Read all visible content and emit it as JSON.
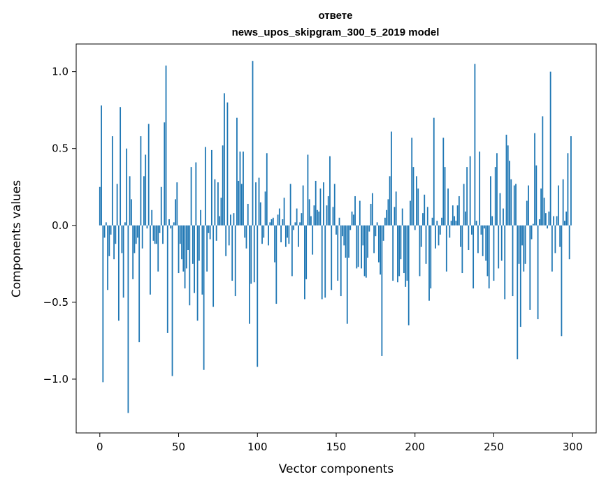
{
  "chart_data": {
    "type": "bar",
    "title": "ответе",
    "subtitle": "news_upos_skipgram_300_5_2019 model",
    "xlabel": "Vector components",
    "ylabel": "Components values",
    "xlim": [
      -15,
      315
    ],
    "ylim": [
      -1.35,
      1.18
    ],
    "xticks": [
      0,
      50,
      100,
      150,
      200,
      250,
      300
    ],
    "xtick_labels": [
      "0",
      "50",
      "100",
      "150",
      "200",
      "250",
      "300"
    ],
    "yticks": [
      1.0,
      0.5,
      0.0,
      -0.5,
      -1.0
    ],
    "ytick_labels": [
      "1.0",
      "0.5",
      "0.0",
      "−0.5",
      "−1.0"
    ],
    "bar_color": "#1f77b4",
    "grid": false,
    "values": [
      0.25,
      0.78,
      -1.02,
      -0.08,
      0.02,
      -0.42,
      -0.2,
      -0.06,
      0.58,
      -0.22,
      -0.12,
      0.27,
      -0.62,
      0.77,
      -0.18,
      -0.47,
      0.02,
      0.5,
      -1.22,
      0.32,
      0.17,
      -0.35,
      -0.18,
      -0.12,
      -0.08,
      -0.76,
      0.58,
      -0.15,
      0.32,
      0.46,
      -0.02,
      0.66,
      -0.45,
      0.1,
      -0.1,
      -0.12,
      -0.12,
      -0.3,
      -0.05,
      0.25,
      -0.12,
      0.67,
      1.04,
      -0.7,
      0.04,
      -0.02,
      -0.98,
      0.02,
      0.17,
      0.28,
      -0.31,
      -0.12,
      -0.22,
      -0.3,
      -0.41,
      -0.28,
      -0.16,
      -0.52,
      0.38,
      -0.25,
      -0.44,
      0.41,
      -0.62,
      -0.23,
      0.1,
      -0.45,
      -0.94,
      0.51,
      -0.3,
      -0.05,
      -0.09,
      0.49,
      -0.53,
      0.3,
      -0.1,
      0.28,
      0.06,
      0.18,
      0.52,
      0.86,
      -0.2,
      0.8,
      -0.13,
      0.07,
      -0.36,
      0.08,
      -0.46,
      0.7,
      0.29,
      0.48,
      0.27,
      0.48,
      -0.08,
      -0.15,
      0.14,
      -0.64,
      -0.38,
      1.07,
      -0.37,
      0.28,
      -0.92,
      0.31,
      0.15,
      -0.12,
      -0.08,
      0.22,
      0.47,
      -0.13,
      0.02,
      0.04,
      0.05,
      -0.24,
      -0.51,
      0.07,
      0.11,
      -0.11,
      0.04,
      0.18,
      -0.14,
      -0.08,
      -0.12,
      0.27,
      -0.33,
      -0.03,
      0.02,
      0.11,
      -0.14,
      0.02,
      0.08,
      0.26,
      -0.48,
      -0.35,
      0.46,
      0.17,
      0.06,
      -0.19,
      0.13,
      0.29,
      0.1,
      0.09,
      0.24,
      -0.48,
      0.28,
      -0.47,
      0.13,
      0.19,
      0.45,
      -0.42,
      0.12,
      0.27,
      -0.06,
      -0.36,
      0.05,
      -0.46,
      -0.07,
      -0.13,
      -0.21,
      -0.64,
      -0.21,
      -0.03,
      0.09,
      0.07,
      0.19,
      -0.28,
      -0.27,
      0.16,
      -0.28,
      -0.13,
      -0.33,
      -0.34,
      -0.21,
      -0.04,
      0.14,
      0.21,
      -0.18,
      -0.07,
      0.02,
      -0.24,
      -0.32,
      -0.85,
      -0.1,
      0.05,
      0.1,
      0.17,
      0.32,
      0.61,
      -0.36,
      0.12,
      0.22,
      -0.37,
      -0.33,
      -0.22,
      0.11,
      -0.31,
      -0.4,
      -0.36,
      -0.65,
      0.16,
      0.57,
      0.38,
      -0.03,
      0.32,
      0.24,
      -0.33,
      -0.14,
      0.08,
      0.2,
      -0.25,
      0.12,
      -0.49,
      -0.41,
      0.05,
      0.7,
      -0.15,
      0.03,
      -0.13,
      -0.06,
      0.05,
      0.57,
      0.38,
      -0.3,
      0.24,
      -0.08,
      0.03,
      0.13,
      0.06,
      0.03,
      0.13,
      0.19,
      -0.14,
      -0.31,
      0.27,
      0.09,
      0.38,
      -0.16,
      0.45,
      -0.06,
      -0.41,
      1.05,
      0.03,
      -0.18,
      0.48,
      -0.06,
      -0.2,
      -0.02,
      -0.23,
      -0.33,
      -0.41,
      0.32,
      0.06,
      -0.36,
      0.38,
      0.47,
      -0.28,
      0.21,
      -0.23,
      0.11,
      -0.48,
      0.59,
      0.52,
      0.42,
      0.3,
      -0.46,
      0.26,
      0.27,
      -0.87,
      -0.25,
      -0.66,
      -0.13,
      -0.3,
      -0.25,
      0.16,
      0.26,
      -0.55,
      -0.09,
      0.01,
      0.6,
      0.39,
      -0.61,
      0.04,
      0.24,
      0.71,
      0.18,
      0.08,
      -0.02,
      0.09,
      1.0,
      -0.3,
      0.06,
      -0.18,
      0.06,
      0.26,
      -0.14,
      -0.72,
      0.3,
      0.03,
      0.09,
      0.47,
      -0.22,
      0.58
    ]
  }
}
